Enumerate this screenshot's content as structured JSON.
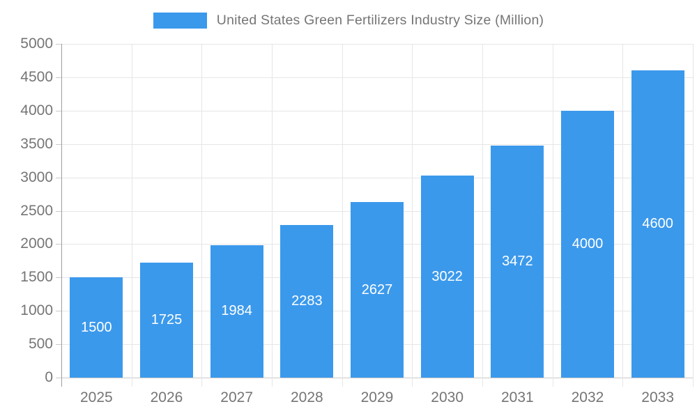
{
  "chart_data": {
    "type": "bar",
    "title": "United States Green Fertilizers Industry Size (Million)",
    "categories": [
      "2025",
      "2026",
      "2027",
      "2028",
      "2029",
      "2030",
      "2031",
      "2032",
      "2033"
    ],
    "values": [
      1500,
      1725,
      1984,
      2283,
      2627,
      3022,
      3472,
      4000,
      4600
    ],
    "value_labels": [
      "1500",
      "1725",
      "1984",
      "2283",
      "2627",
      "3022",
      "3472",
      "4000",
      "4600"
    ],
    "xlabel": "",
    "ylabel": "",
    "ylim": [
      0,
      5000
    ],
    "ytick_step": 500,
    "ytick_labels": [
      "0",
      "500",
      "1000",
      "1500",
      "2000",
      "2500",
      "3000",
      "3500",
      "4000",
      "4500",
      "5000"
    ],
    "grid": true,
    "legend_position": "top-center",
    "colors": {
      "bar": "#3b99ec",
      "axis_text": "#757575",
      "grid_line": "#e6e6e6",
      "axis_line": "#9e9e9e",
      "zero_line": "#c9c9c9",
      "value_label": "#ffffff",
      "background": "#ffffff"
    }
  }
}
